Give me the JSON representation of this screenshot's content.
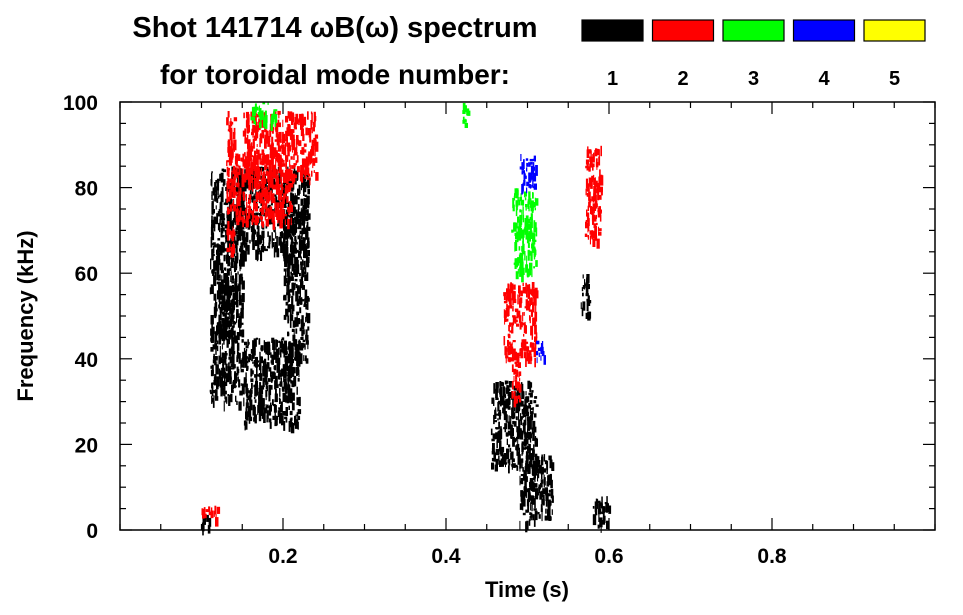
{
  "chart_data": {
    "type": "heatmap",
    "title": "Shot 141714 ωB(ω) spectrum",
    "subtitle": "for toroidal mode number:",
    "xlabel": "Time (s)",
    "ylabel": "Frequency (kHz)",
    "xlim": [
      0.0,
      1.0
    ],
    "ylim": [
      0,
      100
    ],
    "xticks": [
      0.2,
      0.4,
      0.6,
      0.8
    ],
    "xtick_labels": [
      "0.2",
      "0.4",
      "0.6",
      "0.8"
    ],
    "yticks": [
      0,
      20,
      40,
      60,
      80,
      100
    ],
    "ytick_labels": [
      "0",
      "20",
      "40",
      "60",
      "80",
      "100"
    ],
    "grid": false,
    "legend": {
      "placement": "top-right",
      "entries": [
        {
          "label": "1",
          "color": "#000000"
        },
        {
          "label": "2",
          "color": "#ff0000"
        },
        {
          "label": "3",
          "color": "#00ff00"
        },
        {
          "label": "4",
          "color": "#0000ff"
        },
        {
          "label": "5",
          "color": "#ffff00"
        }
      ]
    },
    "regions": [
      {
        "mode": 1,
        "t": [
          0.1,
          0.11
        ],
        "f": [
          1,
          4
        ]
      },
      {
        "mode": 1,
        "t": [
          0.11,
          0.15
        ],
        "f": [
          30,
          85
        ]
      },
      {
        "mode": 1,
        "t": [
          0.12,
          0.14
        ],
        "f": [
          45,
          60
        ]
      },
      {
        "mode": 1,
        "t": [
          0.14,
          0.23
        ],
        "f": [
          65,
          85
        ]
      },
      {
        "mode": 1,
        "t": [
          0.15,
          0.22
        ],
        "f": [
          25,
          45
        ]
      },
      {
        "mode": 1,
        "t": [
          0.2,
          0.23
        ],
        "f": [
          40,
          75
        ]
      },
      {
        "mode": 1,
        "t": [
          0.455,
          0.51
        ],
        "f": [
          15,
          35
        ]
      },
      {
        "mode": 1,
        "t": [
          0.49,
          0.53
        ],
        "f": [
          2,
          18
        ]
      },
      {
        "mode": 1,
        "t": [
          0.565,
          0.575
        ],
        "f": [
          50,
          60
        ]
      },
      {
        "mode": 1,
        "t": [
          0.58,
          0.6
        ],
        "f": [
          1,
          8
        ]
      },
      {
        "mode": 2,
        "t": [
          0.1,
          0.12
        ],
        "f": [
          3,
          6
        ]
      },
      {
        "mode": 2,
        "t": [
          0.13,
          0.14
        ],
        "f": [
          65,
          98
        ]
      },
      {
        "mode": 2,
        "t": [
          0.15,
          0.24
        ],
        "f": [
          82,
          98
        ]
      },
      {
        "mode": 2,
        "t": [
          0.14,
          0.21
        ],
        "f": [
          72,
          88
        ]
      },
      {
        "mode": 2,
        "t": [
          0.47,
          0.51
        ],
        "f": [
          40,
          58
        ]
      },
      {
        "mode": 2,
        "t": [
          0.48,
          0.49
        ],
        "f": [
          30,
          40
        ]
      },
      {
        "mode": 2,
        "t": [
          0.57,
          0.59
        ],
        "f": [
          68,
          90
        ]
      },
      {
        "mode": 3,
        "t": [
          0.16,
          0.19
        ],
        "f": [
          95,
          100
        ]
      },
      {
        "mode": 3,
        "t": [
          0.42,
          0.43
        ],
        "f": [
          95,
          100
        ]
      },
      {
        "mode": 3,
        "t": [
          0.48,
          0.51
        ],
        "f": [
          60,
          80
        ]
      },
      {
        "mode": 4,
        "t": [
          0.49,
          0.51
        ],
        "f": [
          80,
          88
        ]
      },
      {
        "mode": 4,
        "t": [
          0.51,
          0.52
        ],
        "f": [
          40,
          45
        ]
      }
    ]
  }
}
